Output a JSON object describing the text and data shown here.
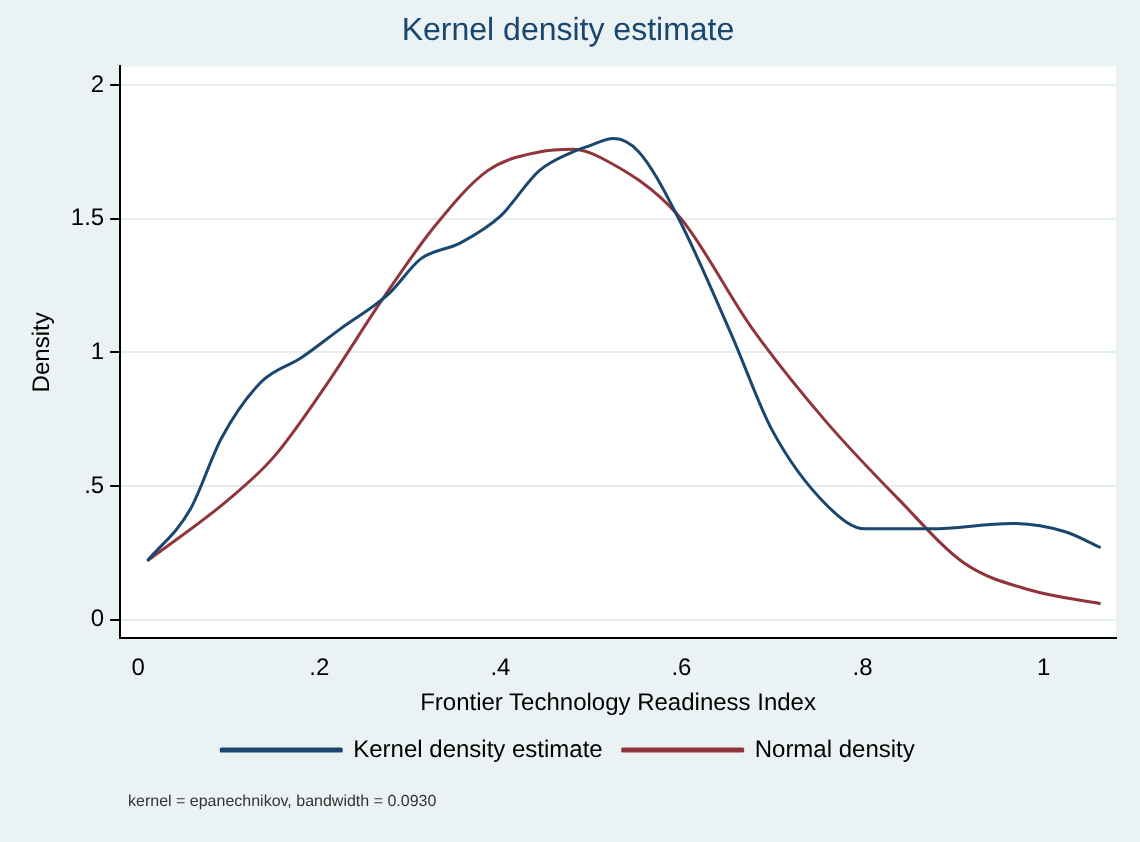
{
  "chart_data": {
    "type": "line",
    "title": "Kernel density estimate",
    "xlabel": "Frontier Technology Readiness Index",
    "ylabel": "Density",
    "annotations": [
      "kernel = epanechnikov, bandwidth = 0.0930"
    ],
    "xlim": [
      -0.02,
      1.08
    ],
    "xticks": [
      0,
      {
        "value": 0.2,
        "label": ".2"
      },
      {
        "value": 0.4,
        "label": ".4"
      },
      {
        "value": 0.6,
        "label": ".6"
      },
      {
        "value": 0.8,
        "label": ".8"
      },
      1
    ],
    "ylim": [
      -0.07,
      2.07
    ],
    "yticks": [
      0,
      {
        "value": 0.5,
        "label": ".5"
      },
      1,
      {
        "value": 1.5,
        "label": "1.5"
      },
      2
    ],
    "grid": "y",
    "legend": "bottom",
    "marker": "none",
    "line_style": "solid",
    "series": [
      {
        "name": "Kernel density estimate",
        "color": "#1a476f",
        "x": [
          0.01,
          0.057,
          0.092,
          0.136,
          0.18,
          0.224,
          0.277,
          0.312,
          0.356,
          0.4,
          0.443,
          0.48,
          0.496,
          0.525,
          0.553,
          0.597,
          0.656,
          0.7,
          0.76,
          0.803,
          0.876,
          0.964,
          1.023,
          1.063
        ],
        "values": [
          0.22,
          0.41,
          0.68,
          0.89,
          0.98,
          1.09,
          1.22,
          1.35,
          1.41,
          1.51,
          1.68,
          1.75,
          1.77,
          1.8,
          1.75,
          1.5,
          1.06,
          0.71,
          0.43,
          0.34,
          0.34,
          0.36,
          0.33,
          0.27
        ]
      },
      {
        "name": "Normal density",
        "color": "#90353b",
        "x": [
          0.01,
          0.1,
          0.15,
          0.21,
          0.27,
          0.327,
          0.386,
          0.443,
          0.48,
          0.51,
          0.597,
          0.678,
          0.76,
          0.84,
          0.913,
          0.986,
          1.063
        ],
        "values": [
          0.22,
          0.45,
          0.61,
          0.89,
          1.2,
          1.47,
          1.68,
          1.75,
          1.76,
          1.73,
          1.51,
          1.09,
          0.74,
          0.45,
          0.21,
          0.11,
          0.06
        ]
      }
    ]
  }
}
